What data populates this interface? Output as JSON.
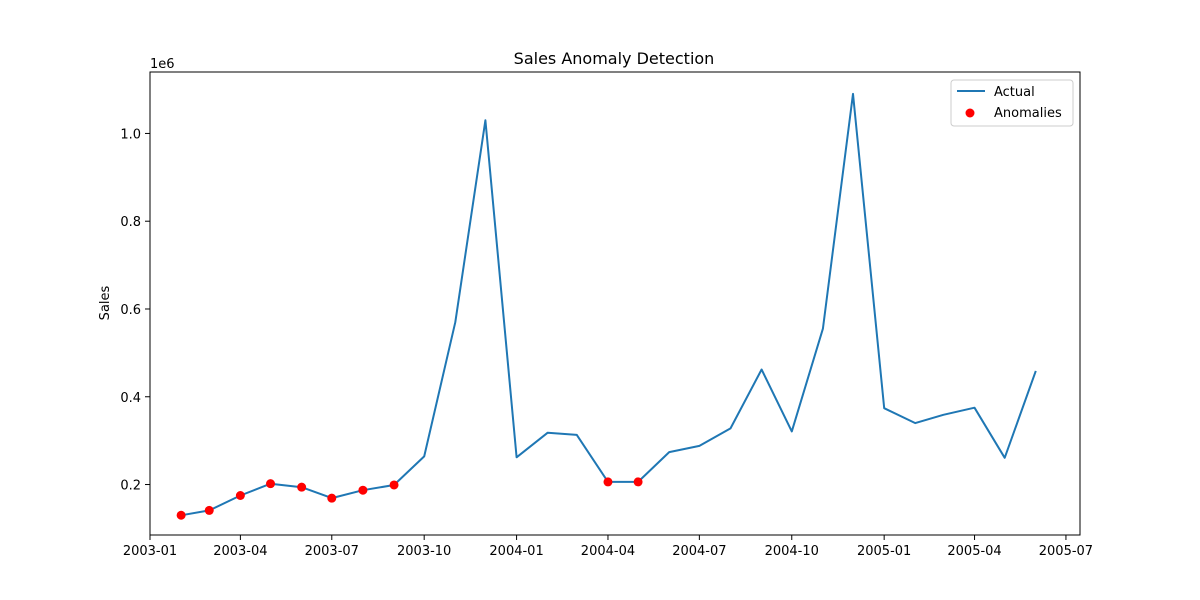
{
  "chart_data": {
    "type": "line",
    "title": "Sales Anomaly Detection",
    "xlabel": "",
    "ylabel": "Sales",
    "y_offset_label": "1e6",
    "y_scale": 1000000,
    "xlim": [
      "2003-01-01",
      "2005-07-15"
    ],
    "ylim": [
      0.085,
      1.14
    ],
    "x_ticks": [
      "2003-01-01",
      "2003-04-01",
      "2003-07-01",
      "2003-10-01",
      "2004-01-01",
      "2004-04-01",
      "2004-07-01",
      "2004-10-01",
      "2005-01-01",
      "2005-04-01",
      "2005-07-01"
    ],
    "x_tick_labels": [
      "2003-01",
      "2003-04",
      "2003-07",
      "2003-10",
      "2004-01",
      "2004-04",
      "2004-07",
      "2004-10",
      "2005-01",
      "2005-04",
      "2005-07"
    ],
    "y_ticks": [
      0.2,
      0.4,
      0.6,
      0.8,
      1.0
    ],
    "y_tick_labels": [
      "0.2",
      "0.4",
      "0.6",
      "0.8",
      "1.0"
    ],
    "grid": false,
    "legend_position": "top-right",
    "series": [
      {
        "name": "Actual",
        "kind": "line",
        "color": "#1f77b4",
        "x": [
          "2003-02-01",
          "2003-03-01",
          "2003-04-01",
          "2003-05-01",
          "2003-06-01",
          "2003-07-01",
          "2003-08-01",
          "2003-09-01",
          "2003-10-01",
          "2003-11-01",
          "2003-12-01",
          "2004-01-01",
          "2004-02-01",
          "2004-03-01",
          "2004-04-01",
          "2004-05-01",
          "2004-06-01",
          "2004-07-01",
          "2004-08-01",
          "2004-09-01",
          "2004-10-01",
          "2004-11-01",
          "2004-12-01",
          "2005-01-01",
          "2005-02-01",
          "2005-03-01",
          "2005-04-01",
          "2005-05-01",
          "2005-06-01"
        ],
        "y": [
          0.13,
          0.141,
          0.175,
          0.202,
          0.194,
          0.169,
          0.187,
          0.199,
          0.264,
          0.57,
          1.03,
          0.262,
          0.318,
          0.313,
          0.206,
          0.206,
          0.274,
          0.288,
          0.328,
          0.462,
          0.321,
          0.555,
          1.09,
          0.374,
          0.34,
          0.359,
          0.375,
          0.261,
          0.459
        ]
      },
      {
        "name": "Anomalies",
        "kind": "scatter",
        "color": "#ff0000",
        "x": [
          "2003-02-01",
          "2003-03-01",
          "2003-04-01",
          "2003-05-01",
          "2003-06-01",
          "2003-07-01",
          "2003-08-01",
          "2003-09-01",
          "2004-04-01",
          "2004-05-01"
        ],
        "y": [
          0.13,
          0.141,
          0.175,
          0.202,
          0.194,
          0.169,
          0.187,
          0.199,
          0.206,
          0.206
        ]
      }
    ]
  }
}
